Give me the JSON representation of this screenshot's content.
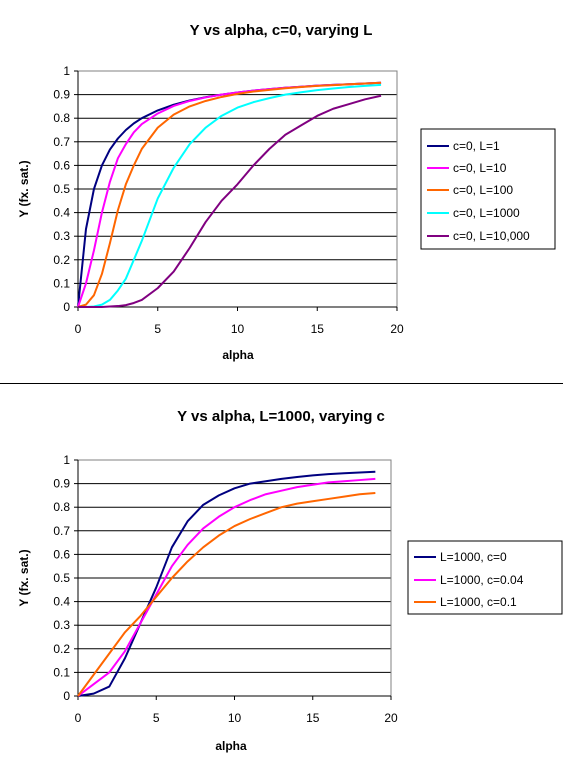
{
  "chart_data": [
    {
      "type": "line",
      "title": "Y vs alpha, c=0, varying L",
      "xlabel": "alpha",
      "ylabel": "Y (fx. sat.)",
      "xlim": [
        0,
        20
      ],
      "ylim": [
        0,
        1
      ],
      "xticks": [
        "0",
        "5",
        "10",
        "15",
        "20"
      ],
      "yticks": [
        "0",
        "0.1",
        "0.2",
        "0.3",
        "0.4",
        "0.5",
        "0.6",
        "0.7",
        "0.8",
        "0.9",
        "1"
      ],
      "grid": "horizontal",
      "legend_position": "right",
      "x": [
        0,
        0.5,
        1,
        1.5,
        2,
        2.5,
        3,
        3.5,
        4,
        5,
        6,
        7,
        8,
        9,
        10,
        11,
        12,
        13,
        14,
        15,
        16,
        17,
        18,
        19
      ],
      "series": [
        {
          "name": "c=0, L=1",
          "color": "#000080",
          "values": [
            0,
            0.33,
            0.5,
            0.6,
            0.667,
            0.714,
            0.75,
            0.778,
            0.8,
            0.833,
            0.857,
            0.875,
            0.889,
            0.9,
            0.909,
            0.917,
            0.923,
            0.929,
            0.933,
            0.938,
            0.941,
            0.944,
            0.947,
            0.95
          ]
        },
        {
          "name": "c=0, L=10",
          "color": "#ff00ff",
          "values": [
            0,
            0.1,
            0.24,
            0.4,
            0.53,
            0.63,
            0.69,
            0.74,
            0.775,
            0.82,
            0.852,
            0.873,
            0.888,
            0.9,
            0.909,
            0.917,
            0.923,
            0.929,
            0.933,
            0.938,
            0.941,
            0.944,
            0.947,
            0.95
          ]
        },
        {
          "name": "c=0, L=100",
          "color": "#ff6600",
          "values": [
            0,
            0.01,
            0.05,
            0.14,
            0.27,
            0.41,
            0.52,
            0.6,
            0.67,
            0.76,
            0.815,
            0.85,
            0.873,
            0.89,
            0.903,
            0.913,
            0.92,
            0.927,
            0.932,
            0.937,
            0.94,
            0.944,
            0.947,
            0.95
          ]
        },
        {
          "name": "c=0, L=1000",
          "color": "#00ffff",
          "values": [
            0,
            0,
            0.002,
            0.01,
            0.03,
            0.07,
            0.12,
            0.2,
            0.28,
            0.46,
            0.59,
            0.69,
            0.76,
            0.81,
            0.845,
            0.868,
            0.885,
            0.9,
            0.91,
            0.919,
            0.926,
            0.932,
            0.937,
            0.941
          ]
        },
        {
          "name": "c=0, L=10,000",
          "color": "#800080",
          "values": [
            0,
            0,
            0,
            0,
            0.002,
            0.004,
            0.008,
            0.017,
            0.03,
            0.08,
            0.15,
            0.25,
            0.36,
            0.45,
            0.52,
            0.6,
            0.67,
            0.73,
            0.77,
            0.81,
            0.84,
            0.86,
            0.88,
            0.895
          ]
        }
      ]
    },
    {
      "type": "line",
      "title": "Y vs alpha, L=1000, varying c",
      "xlabel": "alpha",
      "ylabel": "Y (fx. sat.)",
      "xlim": [
        0,
        20
      ],
      "ylim": [
        0,
        1
      ],
      "xticks": [
        "0",
        "5",
        "10",
        "15",
        "20"
      ],
      "yticks": [
        "0",
        "0.1",
        "0.2",
        "0.3",
        "0.4",
        "0.5",
        "0.6",
        "0.7",
        "0.8",
        "0.9",
        "1"
      ],
      "grid": "horizontal",
      "legend_position": "right",
      "x": [
        0,
        1,
        2,
        3,
        4,
        5,
        6,
        7,
        8,
        9,
        10,
        11,
        12,
        13,
        14,
        15,
        16,
        17,
        18,
        19
      ],
      "series": [
        {
          "name": "L=1000, c=0",
          "color": "#000080",
          "values": [
            0,
            0.01,
            0.04,
            0.16,
            0.31,
            0.46,
            0.63,
            0.74,
            0.81,
            0.85,
            0.88,
            0.9,
            0.91,
            0.92,
            0.928,
            0.935,
            0.94,
            0.944,
            0.947,
            0.95
          ]
        },
        {
          "name": "L=1000, c=0.04",
          "color": "#ff00ff",
          "values": [
            0,
            0.05,
            0.1,
            0.19,
            0.31,
            0.43,
            0.55,
            0.64,
            0.71,
            0.76,
            0.8,
            0.83,
            0.855,
            0.87,
            0.885,
            0.895,
            0.905,
            0.91,
            0.915,
            0.92
          ]
        },
        {
          "name": "L=1000, c=0.1",
          "color": "#ff6600",
          "values": [
            0,
            0.09,
            0.18,
            0.27,
            0.34,
            0.42,
            0.5,
            0.57,
            0.63,
            0.68,
            0.72,
            0.75,
            0.775,
            0.8,
            0.815,
            0.825,
            0.835,
            0.845,
            0.855,
            0.86
          ]
        }
      ]
    }
  ]
}
